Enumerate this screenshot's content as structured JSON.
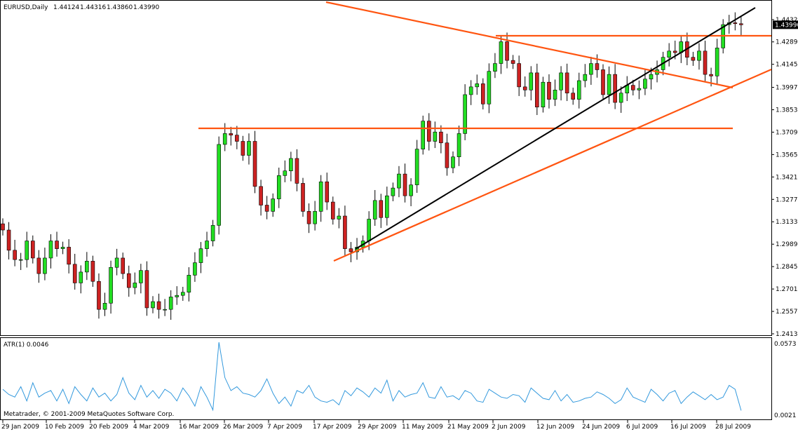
{
  "header": {
    "symbol": "EURUSD,Daily",
    "open": "1.44124",
    "high": "1.44316",
    "low": "1.43860",
    "close": "1.43990"
  },
  "price_scale": {
    "labels": [
      "1.44320",
      "1.42890",
      "1.41450",
      "1.39970",
      "1.38530",
      "1.37090",
      "1.35650",
      "1.34210",
      "1.32770",
      "1.31330",
      "1.29890",
      "1.28450",
      "1.27010",
      "1.25570",
      "1.24130"
    ],
    "current_price": "1.43990"
  },
  "indicator": {
    "label": "ATR(1) 0.0046",
    "scale_top": "0.0573",
    "scale_bottom": "0.0021",
    "copyright": "Metatrader, © 2001-2009 MetaQuotes Software Corp."
  },
  "time_axis": {
    "labels": [
      "29 Jan 2009",
      "10 Feb 2009",
      "20 Feb 2009",
      "4 Mar 2009",
      "16 Mar 2009",
      "26 Mar 2009",
      "7 Apr 2009",
      "17 Apr 2009",
      "29 Apr 2009",
      "11 May 2009",
      "21 May 2009",
      "2 Jun 2009",
      "12 Jun 2009",
      "24 Jun 2009",
      "6 Jul 2009",
      "16 Jul 2009",
      "28 Jul 2009"
    ]
  },
  "colors": {
    "bull": "#22dd22",
    "bear": "#cc2222",
    "wick": "#000000",
    "orange_line": "#ff5511",
    "black_line": "#000000",
    "atr_line": "#3399dd",
    "current_price_bg": "#000000"
  },
  "chart_data": [
    {
      "type": "candlestick",
      "series": [
        {
          "name": "EURUSD,Daily",
          "close": [
            1.308,
            1.295,
            1.289,
            1.289,
            1.301,
            1.29,
            1.28,
            1.29,
            1.301,
            1.296,
            1.297,
            1.286,
            1.274,
            1.281,
            1.288,
            1.275,
            1.257,
            1.261,
            1.284,
            1.29,
            1.28,
            1.271,
            1.274,
            1.282,
            1.258,
            1.262,
            1.257,
            1.257,
            1.265,
            1.266,
            1.268,
            1.279,
            1.287,
            1.296,
            1.301,
            1.311,
            1.363,
            1.37,
            1.369,
            1.365,
            1.356,
            1.365,
            1.336,
            1.324,
            1.32,
            1.328,
            1.343,
            1.346,
            1.354,
            1.338,
            1.32,
            1.312,
            1.32,
            1.339,
            1.326,
            1.315,
            1.317,
            1.296,
            1.294,
            1.297,
            1.301,
            1.315,
            1.327,
            1.316,
            1.33,
            1.335,
            1.344,
            1.33,
            1.337,
            1.36,
            1.378,
            1.365,
            1.371,
            1.364,
            1.348,
            1.355,
            1.37,
            1.395,
            1.4,
            1.402,
            1.389,
            1.41,
            1.415,
            1.429,
            1.417,
            1.415,
            1.4,
            1.398,
            1.409,
            1.387,
            1.403,
            1.392,
            1.398,
            1.409,
            1.396,
            1.392,
            1.404,
            1.408,
            1.415,
            1.411,
            1.395,
            1.408,
            1.39,
            1.396,
            1.401,
            1.398,
            1.399,
            1.405,
            1.408,
            1.411,
            1.419,
            1.423,
            1.422,
            1.429,
            1.419,
            1.417,
            1.423,
            1.408,
            1.407,
            1.425,
            1.44,
            1.4412,
            1.4406,
            1.4399
          ]
        }
      ],
      "x_range": [
        "29 Jan 2009",
        "28 Jul 2009"
      ],
      "ylim": [
        1.235,
        1.45
      ]
    },
    {
      "type": "line",
      "series": [
        {
          "name": "ATR(1)",
          "values": [
            0.021,
            0.017,
            0.015,
            0.023,
            0.012,
            0.026,
            0.015,
            0.018,
            0.02,
            0.012,
            0.021,
            0.01,
            0.023,
            0.017,
            0.012,
            0.022,
            0.015,
            0.018,
            0.012,
            0.017,
            0.03,
            0.018,
            0.013,
            0.024,
            0.015,
            0.02,
            0.014,
            0.021,
            0.018,
            0.012,
            0.022,
            0.016,
            0.008,
            0.023,
            0.015,
            0.005,
            0.0573,
            0.03,
            0.02,
            0.023,
            0.018,
            0.017,
            0.015,
            0.02,
            0.029,
            0.018,
            0.01,
            0.015,
            0.008,
            0.02,
            0.018,
            0.024,
            0.015,
            0.012,
            0.011,
            0.013,
            0.009,
            0.02,
            0.016,
            0.022,
            0.019,
            0.015,
            0.022,
            0.018,
            0.028,
            0.012,
            0.02,
            0.015,
            0.017,
            0.018,
            0.026,
            0.015,
            0.014,
            0.023,
            0.015,
            0.016,
            0.013,
            0.02,
            0.018,
            0.012,
            0.011,
            0.021,
            0.018,
            0.015,
            0.014,
            0.017,
            0.016,
            0.011,
            0.022,
            0.018,
            0.014,
            0.013,
            0.02,
            0.012,
            0.017,
            0.011,
            0.012,
            0.014,
            0.015,
            0.019,
            0.017,
            0.014,
            0.01,
            0.013,
            0.022,
            0.015,
            0.013,
            0.011,
            0.021,
            0.017,
            0.012,
            0.018,
            0.02,
            0.01,
            0.015,
            0.019,
            0.016,
            0.013,
            0.017,
            0.013,
            0.015,
            0.024,
            0.021,
            0.0046
          ]
        }
      ],
      "ylim": [
        0.0021,
        0.0573
      ]
    }
  ]
}
